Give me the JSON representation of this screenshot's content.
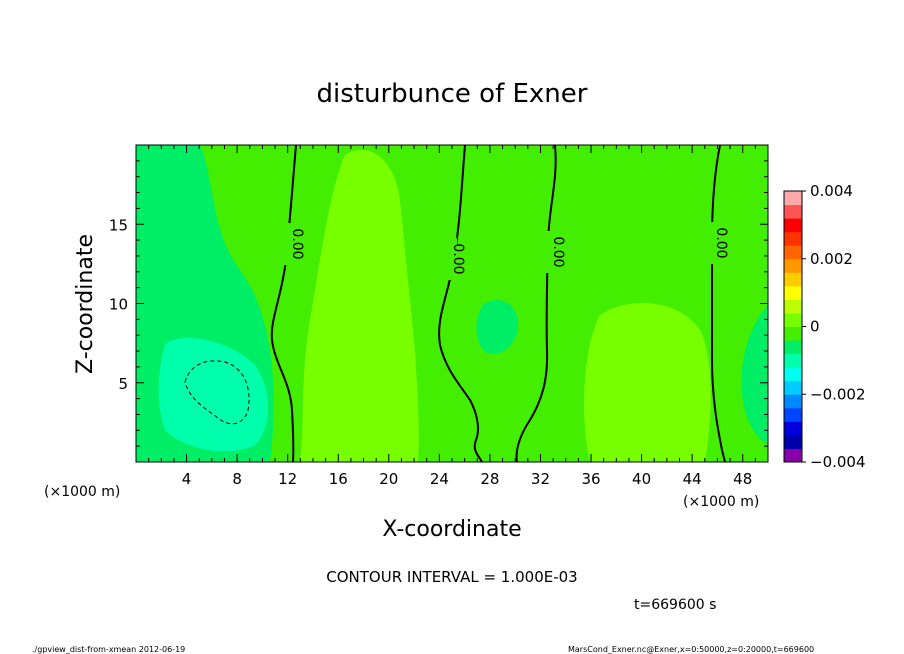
{
  "chart_data": {
    "type": "heatmap",
    "title": "disturbunce of Exner",
    "xlabel": "X-coordinate",
    "ylabel": "Z-coordinate",
    "x_unit": "(×1000 m)",
    "y_unit": "(×1000 m)",
    "xlim": [
      0,
      50
    ],
    "ylim": [
      0,
      20
    ],
    "x_ticks": [
      4,
      8,
      12,
      16,
      20,
      24,
      28,
      32,
      36,
      40,
      44,
      48
    ],
    "y_ticks": [
      5,
      10,
      15
    ],
    "contour_label": "0.00",
    "contour_interval": "CONTOUR INTERVAL = 1.000E-03",
    "time_label": "t=669600 s",
    "colorbar": {
      "range": [
        -0.004,
        0.004
      ],
      "tick_labels": [
        "0.004",
        "0.002",
        "0",
        "−0.002",
        "−0.004"
      ],
      "tick_values": [
        0.004,
        0.002,
        0,
        -0.002,
        -0.004
      ],
      "colors": [
        "#8800aa",
        "#0000aa",
        "#0000dd",
        "#0044ff",
        "#0088ff",
        "#00ccff",
        "#00ffee",
        "#00ffaa",
        "#00ee66",
        "#44ee00",
        "#77ff00",
        "#bbff00",
        "#ffff00",
        "#ffcc00",
        "#ff9900",
        "#ff6600",
        "#ff3300",
        "#ff0000",
        "#ff5555",
        "#ffaaaa"
      ]
    },
    "zero_contour_x": [
      12,
      25,
      31,
      46
    ],
    "negative_contour_center": [
      5.5,
      4.5
    ]
  },
  "footer": {
    "left": "./gpview_dist-from-xmean  2012-06-19",
    "right": "MarsCond_Exner.nc@Exner,x=0:50000,z=0:20000,t=669600"
  }
}
